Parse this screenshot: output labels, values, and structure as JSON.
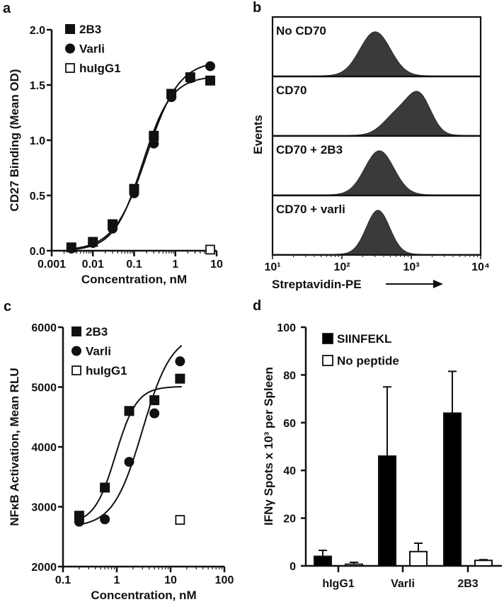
{
  "chart_data": [
    {
      "panel": "a",
      "type": "scatter",
      "title": "",
      "xlabel": "Concentration, nM",
      "ylabel": "CD27 Binding (Mean OD)",
      "xscale": "log",
      "xlim": [
        0.001,
        10
      ],
      "ylim": [
        0,
        2.0
      ],
      "xticks": [
        "0.001",
        "0.01",
        "0.1",
        "1",
        "10"
      ],
      "yticks": [
        "0.0",
        "0.5",
        "1.0",
        "1.5",
        "2.0"
      ],
      "legend_position": "top-left",
      "series": [
        {
          "name": "2B3",
          "marker": "square-filled",
          "x": [
            0.003,
            0.01,
            0.03,
            0.1,
            0.3,
            0.8,
            2.3,
            7
          ],
          "y": [
            0.03,
            0.08,
            0.24,
            0.56,
            1.04,
            1.42,
            1.57,
            1.54
          ],
          "fit": {
            "bottom": 0.0,
            "top": 1.58,
            "ec50": 0.16,
            "hill": 1.25
          }
        },
        {
          "name": "Varli",
          "marker": "circle-filled",
          "x": [
            0.003,
            0.01,
            0.03,
            0.1,
            0.3,
            0.8,
            2.3,
            7
          ],
          "y": [
            0.02,
            0.07,
            0.2,
            0.52,
            0.97,
            1.39,
            1.56,
            1.67
          ],
          "fit": {
            "bottom": 0.0,
            "top": 1.72,
            "ec50": 0.2,
            "hill": 1.1
          }
        },
        {
          "name": "huIgG1",
          "marker": "square-open",
          "x": [
            7
          ],
          "y": [
            0.01
          ]
        }
      ]
    },
    {
      "panel": "b",
      "type": "area",
      "xlabel": "Streptavidin-PE",
      "ylabel": "Events",
      "xscale": "log",
      "xlim": [
        10,
        10000
      ],
      "xticks": [
        "10¹",
        "10²",
        "10³",
        "10⁴"
      ],
      "histograms": [
        {
          "name": "No CD70",
          "components": [
            {
              "mean_log10": 2.48,
              "sd_log10": 0.22,
              "weight": 1
            }
          ]
        },
        {
          "name": "CD70",
          "components": [
            {
              "mean_log10": 3.12,
              "sd_log10": 0.17,
              "weight": 0.8
            },
            {
              "mean_log10": 2.8,
              "sd_log10": 0.2,
              "weight": 0.45
            }
          ]
        },
        {
          "name": "CD70 + 2B3",
          "components": [
            {
              "mean_log10": 2.54,
              "sd_log10": 0.21,
              "weight": 1
            }
          ]
        },
        {
          "name": "CD70 + varli",
          "components": [
            {
              "mean_log10": 2.52,
              "sd_log10": 0.17,
              "weight": 1
            }
          ]
        }
      ]
    },
    {
      "panel": "c",
      "type": "scatter",
      "xlabel": "Concentration, nM",
      "ylabel": "NFκB Activation, Mean RLU",
      "xscale": "log",
      "xlim": [
        0.1,
        100
      ],
      "ylim": [
        2000,
        6000
      ],
      "xticks": [
        "0.1",
        "1",
        "10",
        "100"
      ],
      "yticks": [
        "2000",
        "3000",
        "4000",
        "5000",
        "6000"
      ],
      "legend_position": "top-left",
      "series": [
        {
          "name": "2B3",
          "marker": "square-filled",
          "x": [
            0.2,
            0.6,
            1.7,
            5,
            15
          ],
          "y": [
            2850,
            3320,
            4600,
            4780,
            5140
          ],
          "fit": {
            "bottom": 2720,
            "top": 5010,
            "ec50": 0.95,
            "hill": 2.2
          }
        },
        {
          "name": "Varli",
          "marker": "circle-filled",
          "x": [
            0.2,
            0.6,
            1.7,
            5,
            15
          ],
          "y": [
            2750,
            2790,
            3750,
            4560,
            5430
          ],
          "fit": {
            "bottom": 2660,
            "top": 5900,
            "ec50": 3.0,
            "hill": 1.6
          }
        },
        {
          "name": "huIgG1",
          "marker": "square-open",
          "x": [
            15
          ],
          "y": [
            2780
          ]
        }
      ]
    },
    {
      "panel": "d",
      "type": "bar",
      "xlabel": "",
      "ylabel": "IFNγ Spots x 10³ per Spleen",
      "ylim": [
        0,
        100
      ],
      "yticks": [
        "0",
        "20",
        "40",
        "60",
        "80",
        "100"
      ],
      "categories": [
        "hIgG1",
        "Varli",
        "2B3"
      ],
      "legend_position": "top-left",
      "series": [
        {
          "name": "SIINFEKL",
          "fill": "#000000",
          "values": [
            4,
            46,
            64
          ],
          "error_upper": [
            6.5,
            75,
            81.5
          ]
        },
        {
          "name": "No peptide",
          "fill": "#ffffff",
          "values": [
            0.7,
            6,
            2.3
          ],
          "error_upper": [
            1.5,
            9.5,
            2.6
          ]
        }
      ]
    }
  ],
  "panel_labels": [
    "a",
    "b",
    "c",
    "d"
  ],
  "colors": {
    "ink": "#111111",
    "histogram_fill": "#3a3a3a"
  }
}
